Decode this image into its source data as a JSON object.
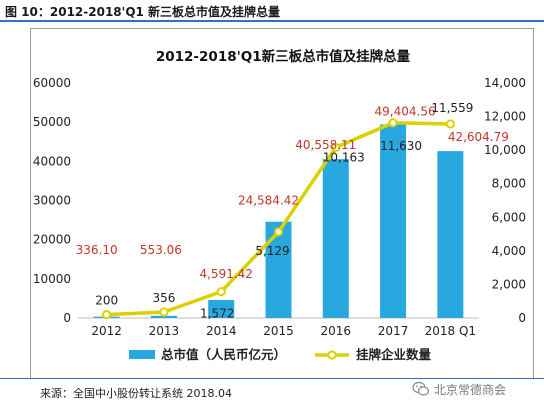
{
  "figure_label": "图 10：2012-2018'Q1 新三板总市值及挂牌总量",
  "source": "来源：全国中小股份转让系统  2018.04",
  "watermark": "北京常德商会",
  "colors": {
    "bar": "#29a8e0",
    "line": "#d9d200",
    "bar_label": "#c0392b",
    "line_label": "#222222",
    "rule": "#2f73b8"
  },
  "chart_data": {
    "type": "bar",
    "title": "2012-2018'Q1新三板总市值及挂牌总量",
    "categories": [
      "2012",
      "2013",
      "2014",
      "2015",
      "2016",
      "2017",
      "2018 Q1"
    ],
    "series": [
      {
        "name": "总市值（人民币亿元）",
        "type": "bar",
        "axis": "left",
        "values": [
          336.1,
          553.06,
          4591.42,
          24584.42,
          40558.11,
          49404.56,
          42604.79
        ],
        "labels": [
          "336.10",
          "553.06",
          "4,591.42",
          "24,584.42",
          "40,558.11",
          "49,404.56",
          "42,604.79"
        ]
      },
      {
        "name": "挂牌企业数量",
        "type": "line",
        "axis": "right",
        "values": [
          200,
          356,
          1572,
          5129,
          10163,
          11630,
          11559
        ],
        "labels": [
          "200",
          "356",
          "1,572",
          "5,129",
          "10,163",
          "11,630",
          "11,559"
        ]
      }
    ],
    "y_left": {
      "min": 0,
      "max": 60000,
      "ticks": [
        "0",
        "10000",
        "20000",
        "30000",
        "40000",
        "50000",
        "60000"
      ]
    },
    "y_right": {
      "min": 0,
      "max": 14000,
      "ticks": [
        "0",
        "2,000",
        "4,000",
        "6,000",
        "8,000",
        "10,000",
        "12,000",
        "14,000"
      ]
    },
    "legend_position": "bottom",
    "grid": false
  }
}
